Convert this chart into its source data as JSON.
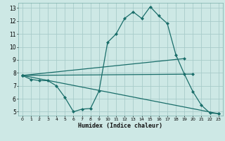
{
  "xlabel": "Humidex (Indice chaleur)",
  "bg_color": "#cde8e5",
  "line_color": "#1a6e6a",
  "grid_color": "#a8ccca",
  "xlim": [
    -0.5,
    23.5
  ],
  "ylim": [
    4.7,
    13.4
  ],
  "xticks": [
    0,
    1,
    2,
    3,
    4,
    5,
    6,
    7,
    8,
    9,
    10,
    11,
    12,
    13,
    14,
    15,
    16,
    17,
    18,
    19,
    20,
    21,
    22,
    23
  ],
  "yticks": [
    5,
    6,
    7,
    8,
    9,
    10,
    11,
    12,
    13
  ],
  "line1_x": [
    0,
    1,
    2,
    3,
    4,
    5,
    6,
    7,
    8,
    9,
    10,
    11,
    12,
    13,
    14,
    15,
    16,
    17,
    18,
    19,
    20,
    21,
    22,
    23
  ],
  "line1_y": [
    7.8,
    7.5,
    7.4,
    7.4,
    7.0,
    6.1,
    5.0,
    5.2,
    5.25,
    6.6,
    10.35,
    11.0,
    12.2,
    12.7,
    12.2,
    13.1,
    12.4,
    11.8,
    9.4,
    7.9,
    6.55,
    5.5,
    4.9,
    4.85
  ],
  "line2_x": [
    0,
    23
  ],
  "line2_y": [
    7.8,
    4.85
  ],
  "line3_x": [
    0,
    20
  ],
  "line3_y": [
    7.8,
    7.9
  ],
  "line4_x": [
    0,
    19
  ],
  "line4_y": [
    7.8,
    9.1
  ]
}
